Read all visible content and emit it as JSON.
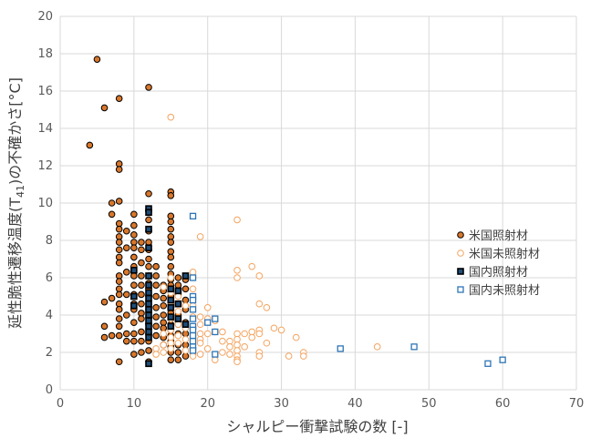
{
  "chart_data": {
    "type": "scatter",
    "xlabel": "シャルピー衝撃試験の数 [-]",
    "ylabel_main": "延性脆性遷移温度(T",
    "ylabel_sub": "41",
    "ylabel_tail": ")の不確かさ[°C]",
    "xlim": [
      0,
      70
    ],
    "ylim": [
      0,
      20
    ],
    "xticks": [
      "0",
      "10",
      "20",
      "30",
      "40",
      "50",
      "60",
      "70"
    ],
    "yticks": [
      "0",
      "2",
      "4",
      "6",
      "8",
      "10",
      "12",
      "14",
      "16",
      "18",
      "20"
    ],
    "grid": true,
    "legend_position": "right",
    "series": [
      {
        "name": "米国照射材",
        "marker": "circle-filled",
        "fill": "#d9772b",
        "stroke": "#000000",
        "points": [
          [
            4,
            13.1
          ],
          [
            5,
            17.7
          ],
          [
            6,
            15.1
          ],
          [
            6,
            4.7
          ],
          [
            6,
            3.4
          ],
          [
            6,
            2.8
          ],
          [
            7,
            10.0
          ],
          [
            7,
            9.4
          ],
          [
            7,
            4.9
          ],
          [
            7,
            2.9
          ],
          [
            8,
            15.6
          ],
          [
            8,
            12.1
          ],
          [
            8,
            11.8
          ],
          [
            8,
            10.1
          ],
          [
            8,
            8.9
          ],
          [
            8,
            8.6
          ],
          [
            8,
            8.2
          ],
          [
            8,
            7.9
          ],
          [
            8,
            7.5
          ],
          [
            8,
            7.1
          ],
          [
            8,
            6.8
          ],
          [
            8,
            6.1
          ],
          [
            8,
            5.8
          ],
          [
            8,
            5.4
          ],
          [
            8,
            5.1
          ],
          [
            8,
            4.6
          ],
          [
            8,
            4.3
          ],
          [
            8,
            3.8
          ],
          [
            8,
            3.4
          ],
          [
            8,
            2.9
          ],
          [
            8,
            1.5
          ],
          [
            9,
            8.5
          ],
          [
            9,
            7.6
          ],
          [
            9,
            6.3
          ],
          [
            9,
            5.1
          ],
          [
            9,
            4.0
          ],
          [
            9,
            3.0
          ],
          [
            9,
            2.6
          ],
          [
            10,
            9.4
          ],
          [
            10,
            8.8
          ],
          [
            10,
            8.3
          ],
          [
            10,
            7.9
          ],
          [
            10,
            7.6
          ],
          [
            10,
            7.1
          ],
          [
            10,
            6.6
          ],
          [
            10,
            6.1
          ],
          [
            10,
            5.6
          ],
          [
            10,
            5.1
          ],
          [
            10,
            4.6
          ],
          [
            10,
            4.3
          ],
          [
            10,
            3.6
          ],
          [
            10,
            3.0
          ],
          [
            10,
            2.6
          ],
          [
            10,
            1.9
          ],
          [
            11,
            7.9
          ],
          [
            11,
            7.5
          ],
          [
            11,
            6.8
          ],
          [
            11,
            6.1
          ],
          [
            11,
            5.6
          ],
          [
            11,
            5.1
          ],
          [
            11,
            4.6
          ],
          [
            11,
            4.1
          ],
          [
            11,
            3.8
          ],
          [
            11,
            3.1
          ],
          [
            11,
            2.6
          ],
          [
            11,
            2.0
          ],
          [
            12,
            16.2
          ],
          [
            12,
            10.5
          ],
          [
            12,
            9.6
          ],
          [
            12,
            9.1
          ],
          [
            12,
            8.5
          ],
          [
            12,
            7.9
          ],
          [
            12,
            7.5
          ],
          [
            12,
            7.0
          ],
          [
            12,
            6.6
          ],
          [
            12,
            6.1
          ],
          [
            12,
            5.7
          ],
          [
            12,
            5.4
          ],
          [
            12,
            5.0
          ],
          [
            12,
            4.6
          ],
          [
            12,
            4.3
          ],
          [
            12,
            3.9
          ],
          [
            12,
            3.5
          ],
          [
            12,
            3.0
          ],
          [
            12,
            2.6
          ],
          [
            12,
            2.1
          ],
          [
            12,
            1.5
          ],
          [
            13,
            6.6
          ],
          [
            13,
            6.1
          ],
          [
            13,
            5.6
          ],
          [
            13,
            5.0
          ],
          [
            13,
            4.4
          ],
          [
            13,
            3.9
          ],
          [
            13,
            3.4
          ],
          [
            13,
            2.9
          ],
          [
            14,
            5.6
          ],
          [
            14,
            5.3
          ],
          [
            14,
            4.9
          ],
          [
            14,
            4.5
          ],
          [
            14,
            4.0
          ],
          [
            14,
            3.6
          ],
          [
            14,
            3.3
          ],
          [
            14,
            2.8
          ],
          [
            14,
            2.4
          ],
          [
            15,
            10.6
          ],
          [
            15,
            10.4
          ],
          [
            15,
            9.3
          ],
          [
            15,
            9.0
          ],
          [
            15,
            8.6
          ],
          [
            15,
            8.2
          ],
          [
            15,
            7.9
          ],
          [
            15,
            7.4
          ],
          [
            15,
            7.1
          ],
          [
            15,
            6.6
          ],
          [
            15,
            6.2
          ],
          [
            15,
            5.9
          ],
          [
            15,
            5.6
          ],
          [
            15,
            5.3
          ],
          [
            15,
            5.0
          ],
          [
            15,
            4.7
          ],
          [
            15,
            4.4
          ],
          [
            15,
            4.1
          ],
          [
            15,
            3.8
          ],
          [
            15,
            3.5
          ],
          [
            15,
            3.2
          ],
          [
            15,
            2.9
          ],
          [
            15,
            2.6
          ],
          [
            15,
            2.3
          ],
          [
            15,
            2.0
          ],
          [
            15,
            1.6
          ],
          [
            16,
            6.0
          ],
          [
            16,
            5.6
          ],
          [
            16,
            5.1
          ],
          [
            16,
            4.6
          ],
          [
            16,
            4.0
          ],
          [
            16,
            3.5
          ],
          [
            16,
            3.0
          ],
          [
            16,
            2.4
          ],
          [
            16,
            2.0
          ],
          [
            16,
            1.6
          ],
          [
            17,
            5.9
          ],
          [
            17,
            5.4
          ],
          [
            17,
            4.8
          ],
          [
            17,
            4.3
          ],
          [
            17,
            3.6
          ],
          [
            17,
            3.0
          ],
          [
            17,
            2.4
          ],
          [
            17,
            1.8
          ]
        ]
      },
      {
        "name": "米国未照射材",
        "marker": "circle-open",
        "fill": "#ffffff",
        "stroke": "#f4a460",
        "points": [
          [
            13,
            2.2
          ],
          [
            13,
            1.9
          ],
          [
            14,
            5.5
          ],
          [
            14,
            3.0
          ],
          [
            14,
            2.4
          ],
          [
            14,
            2.0
          ],
          [
            15,
            14.6
          ],
          [
            15,
            6.0
          ],
          [
            15,
            5.2
          ],
          [
            15,
            4.5
          ],
          [
            15,
            3.8
          ],
          [
            15,
            3.2
          ],
          [
            15,
            2.8
          ],
          [
            15,
            2.5
          ],
          [
            15,
            2.2
          ],
          [
            16,
            5.0
          ],
          [
            16,
            4.2
          ],
          [
            16,
            3.5
          ],
          [
            16,
            2.9
          ],
          [
            16,
            2.5
          ],
          [
            17,
            4.5
          ],
          [
            17,
            3.3
          ],
          [
            17,
            2.7
          ],
          [
            17,
            2.1
          ],
          [
            18,
            6.3
          ],
          [
            18,
            6.0
          ],
          [
            18,
            5.4
          ],
          [
            18,
            4.5
          ],
          [
            18,
            3.9
          ],
          [
            18,
            3.3
          ],
          [
            18,
            2.9
          ],
          [
            18,
            2.6
          ],
          [
            18,
            2.2
          ],
          [
            18,
            1.9
          ],
          [
            18,
            1.8
          ],
          [
            19,
            8.2
          ],
          [
            19,
            3.9
          ],
          [
            19,
            3.5
          ],
          [
            19,
            3.0
          ],
          [
            19,
            2.7
          ],
          [
            19,
            2.5
          ],
          [
            19,
            1.9
          ],
          [
            20,
            4.4
          ],
          [
            20,
            3.8
          ],
          [
            20,
            3.0
          ],
          [
            20,
            2.2
          ],
          [
            21,
            3.7
          ],
          [
            21,
            3.1
          ],
          [
            21,
            1.6
          ],
          [
            22,
            3.1
          ],
          [
            22,
            2.6
          ],
          [
            22,
            2.0
          ],
          [
            23,
            2.6
          ],
          [
            23,
            2.3
          ],
          [
            23,
            1.9
          ],
          [
            24,
            9.1
          ],
          [
            24,
            6.4
          ],
          [
            24,
            6.0
          ],
          [
            24,
            3.0
          ],
          [
            24,
            2.7
          ],
          [
            24,
            2.4
          ],
          [
            24,
            2.1
          ],
          [
            24,
            1.8
          ],
          [
            24,
            1.6
          ],
          [
            24,
            1.5
          ],
          [
            25,
            3.0
          ],
          [
            25,
            2.3
          ],
          [
            26,
            6.6
          ],
          [
            26,
            3.1
          ],
          [
            26,
            2.8
          ],
          [
            27,
            6.1
          ],
          [
            27,
            4.6
          ],
          [
            27,
            3.2
          ],
          [
            27,
            3.0
          ],
          [
            27,
            2.0
          ],
          [
            27,
            1.8
          ],
          [
            28,
            4.4
          ],
          [
            28,
            2.5
          ],
          [
            29,
            3.3
          ],
          [
            30,
            3.2
          ],
          [
            31,
            1.8
          ],
          [
            32,
            2.8
          ],
          [
            33,
            2.0
          ],
          [
            33,
            1.8
          ],
          [
            43,
            2.3
          ]
        ]
      },
      {
        "name": "国内照射材",
        "marker": "square-filled",
        "fill": "#1f4e79",
        "stroke": "#000000",
        "points": [
          [
            10,
            6.4
          ],
          [
            10,
            5.0
          ],
          [
            10,
            4.5
          ],
          [
            12,
            9.7
          ],
          [
            12,
            9.5
          ],
          [
            12,
            8.6
          ],
          [
            12,
            7.6
          ],
          [
            12,
            6.1
          ],
          [
            12,
            5.6
          ],
          [
            12,
            5.2
          ],
          [
            12,
            4.9
          ],
          [
            12,
            4.6
          ],
          [
            12,
            4.3
          ],
          [
            12,
            4.0
          ],
          [
            12,
            3.7
          ],
          [
            12,
            3.4
          ],
          [
            12,
            3.1
          ],
          [
            12,
            2.8
          ],
          [
            12,
            1.4
          ],
          [
            15,
            5.4
          ],
          [
            15,
            4.8
          ],
          [
            15,
            4.4
          ],
          [
            15,
            3.9
          ],
          [
            15,
            3.4
          ],
          [
            16,
            5.3
          ],
          [
            16,
            4.6
          ],
          [
            16,
            3.8
          ],
          [
            17,
            6.1
          ],
          [
            17,
            3.5
          ]
        ]
      },
      {
        "name": "国内未照射材",
        "marker": "square-open",
        "fill": "#ffffff",
        "stroke": "#2e75b6",
        "points": [
          [
            18,
            9.3
          ],
          [
            18,
            6.0
          ],
          [
            18,
            5.0
          ],
          [
            18,
            4.8
          ],
          [
            18,
            4.3
          ],
          [
            18,
            3.8
          ],
          [
            18,
            3.4
          ],
          [
            18,
            3.2
          ],
          [
            18,
            2.9
          ],
          [
            18,
            2.6
          ],
          [
            18,
            2.3
          ],
          [
            18,
            2.1
          ],
          [
            20,
            3.6
          ],
          [
            21,
            3.8
          ],
          [
            21,
            3.1
          ],
          [
            21,
            1.9
          ],
          [
            38,
            2.2
          ],
          [
            48,
            2.3
          ],
          [
            58,
            1.4
          ],
          [
            60,
            1.6
          ]
        ]
      }
    ]
  }
}
